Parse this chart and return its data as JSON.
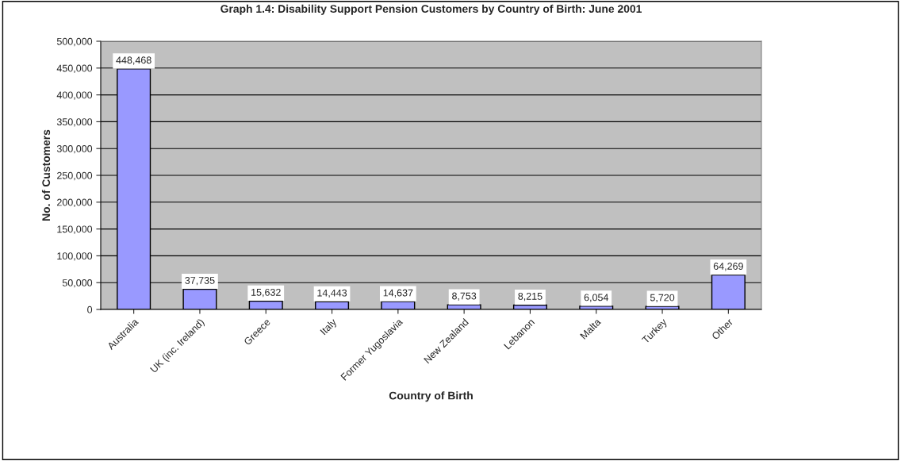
{
  "chart_data": {
    "type": "bar",
    "title": "Graph 1.4: Disability Support Pension Customers by Country of Birth: June 2001",
    "xlabel": "Country of Birth",
    "ylabel": "No. of Customers",
    "categories": [
      "Australia",
      "UK (inc. Ireland)",
      "Greece",
      "Italy",
      "Former Yugoslavia",
      "New Zealand",
      "Lebanon",
      "Malta",
      "Turkey",
      "Other"
    ],
    "values": [
      448468,
      37735,
      15632,
      14443,
      14637,
      8753,
      8215,
      6054,
      5720,
      64269
    ],
    "value_labels": [
      "448,468",
      "37,735",
      "15,632",
      "14,443",
      "14,637",
      "8,753",
      "8,215",
      "6,054",
      "5,720",
      "64,269"
    ],
    "color": "#9999ff",
    "ylim": [
      0,
      500000
    ],
    "yticks": [
      {
        "value": 0,
        "label": "0"
      },
      {
        "value": 50000,
        "label": "50,000"
      },
      {
        "value": 100000,
        "label": "100,000"
      },
      {
        "value": 150000,
        "label": "150,000"
      },
      {
        "value": 200000,
        "label": "200,000"
      },
      {
        "value": 250000,
        "label": "250,000"
      },
      {
        "value": 300000,
        "label": "300,000"
      },
      {
        "value": 350000,
        "label": "350,000"
      },
      {
        "value": 400000,
        "label": "400,000"
      },
      {
        "value": 450000,
        "label": "450,000"
      },
      {
        "value": 500000,
        "label": "500,000"
      }
    ],
    "grid": "y",
    "legend": false
  }
}
